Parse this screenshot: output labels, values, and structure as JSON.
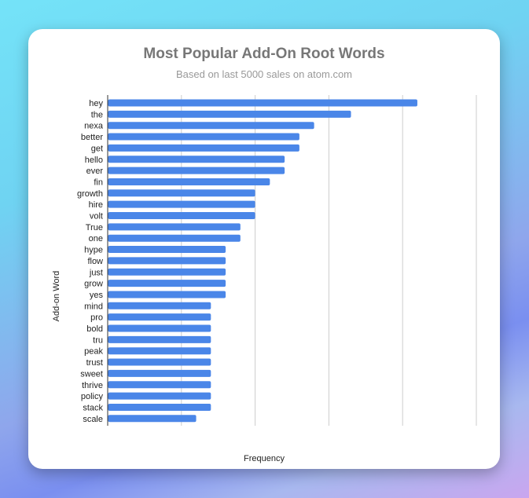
{
  "chart_data": {
    "type": "bar",
    "orientation": "horizontal",
    "title": "Most Popular Add-On Root Words",
    "subtitle": "Based on last 5000 sales on atom.com",
    "xlabel": "Frequency",
    "ylabel": "Add-on Word",
    "xlim": [
      0,
      25
    ],
    "grid": true,
    "bar_color": "#4a86e8",
    "categories": [
      "hey",
      "the",
      "nexa",
      "better",
      "get",
      "hello",
      "ever",
      "fin",
      "growth",
      "hire",
      "volt",
      "True",
      "one",
      "hype",
      "flow",
      "just",
      "grow",
      "yes",
      "mind",
      "pro",
      "bold",
      "tru",
      "peak",
      "trust",
      "sweet",
      "thrive",
      "policy",
      "stack",
      "scale"
    ],
    "values": [
      21,
      16.5,
      14,
      13,
      13,
      12,
      12,
      11,
      10,
      10,
      10,
      9,
      9,
      8,
      8,
      8,
      8,
      8,
      7,
      7,
      7,
      7,
      7,
      7,
      7,
      7,
      7,
      7,
      6
    ]
  }
}
